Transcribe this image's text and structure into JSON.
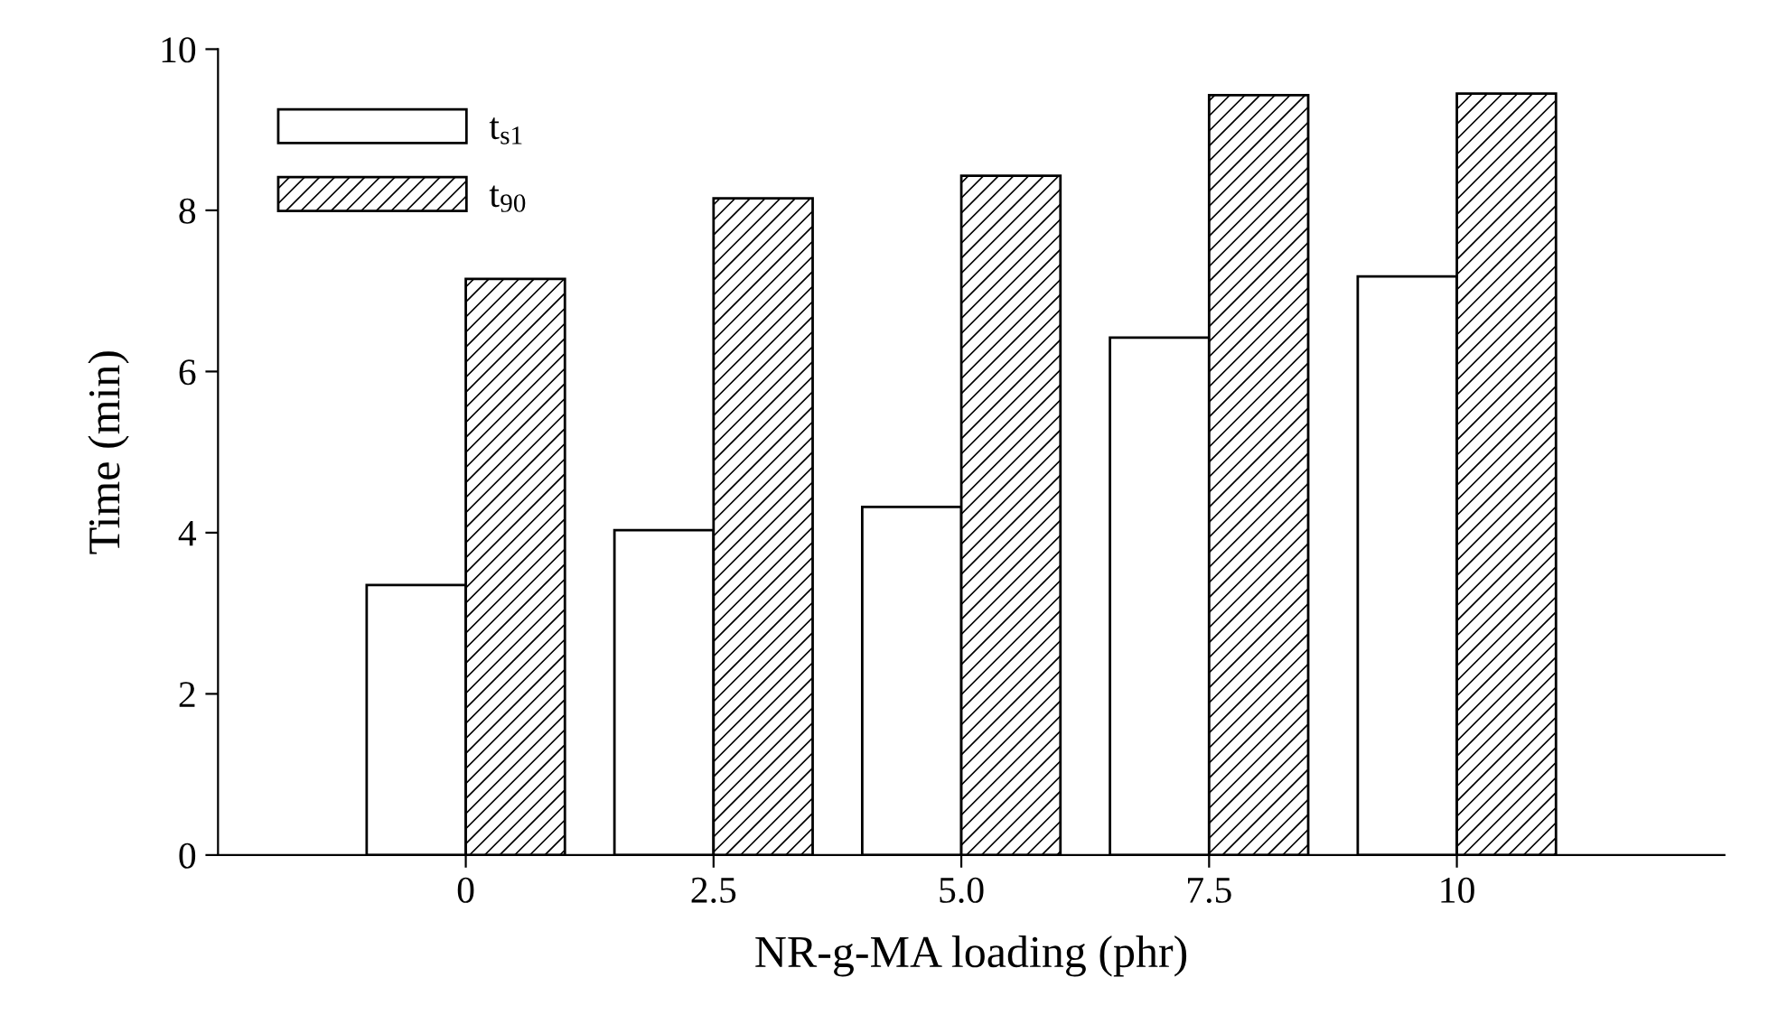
{
  "chart_data": {
    "type": "bar",
    "xlabel": "NR-g-MA loading (phr)",
    "ylabel": "Time (min)",
    "categories": [
      "0",
      "2.5",
      "5.0",
      "7.5",
      "10"
    ],
    "series": [
      {
        "name": "t$_{s1}$",
        "color": "#ffffff",
        "values": [
          3.35,
          4.03,
          4.32,
          6.42,
          7.18
        ]
      },
      {
        "name": "t$_{90}$",
        "color": "#000000",
        "values": [
          7.15,
          8.15,
          8.43,
          9.43,
          9.45
        ]
      }
    ],
    "ylim": [
      0,
      10
    ],
    "yticks": [
      0,
      2,
      4,
      6,
      8,
      10
    ],
    "legend": "top left"
  }
}
